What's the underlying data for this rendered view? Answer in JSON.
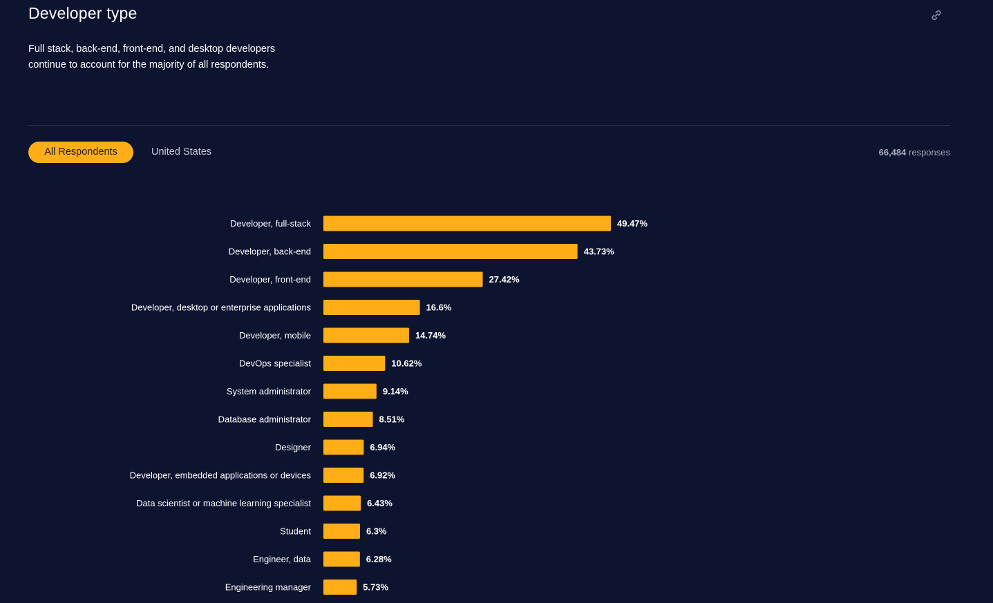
{
  "header": {
    "title": "Developer type",
    "subtitle": "Full stack, back-end, front-end, and desktop developers continue to account for the majority of all respondents."
  },
  "tabs": [
    {
      "label": "All Respondents",
      "active": true
    },
    {
      "label": "United States",
      "active": false
    }
  ],
  "responses": {
    "count": "66,484",
    "label": "responses"
  },
  "icons": {
    "share": "link-icon"
  },
  "colors": {
    "background": "#0c1430",
    "accent": "#ffae18"
  },
  "chart_data": {
    "type": "bar",
    "orientation": "horizontal",
    "categories": [
      "Developer, full-stack",
      "Developer, back-end",
      "Developer, front-end",
      "Developer, desktop or enterprise applications",
      "Developer, mobile",
      "DevOps specialist",
      "System administrator",
      "Database administrator",
      "Designer",
      "Developer, embedded applications or devices",
      "Data scientist or machine learning specialist",
      "Student",
      "Engineer, data",
      "Engineering manager"
    ],
    "values": [
      49.47,
      43.73,
      27.42,
      16.6,
      14.74,
      10.62,
      9.14,
      8.51,
      6.94,
      6.92,
      6.43,
      6.3,
      6.28,
      5.73
    ],
    "value_labels": [
      "49.47%",
      "43.73%",
      "27.42%",
      "16.6%",
      "14.74%",
      "10.62%",
      "9.14%",
      "8.51%",
      "6.94%",
      "6.92%",
      "6.43%",
      "6.3%",
      "6.28%",
      "5.73%"
    ],
    "title": "",
    "xlabel": "",
    "ylabel": "",
    "grid": false,
    "legend": "none"
  }
}
